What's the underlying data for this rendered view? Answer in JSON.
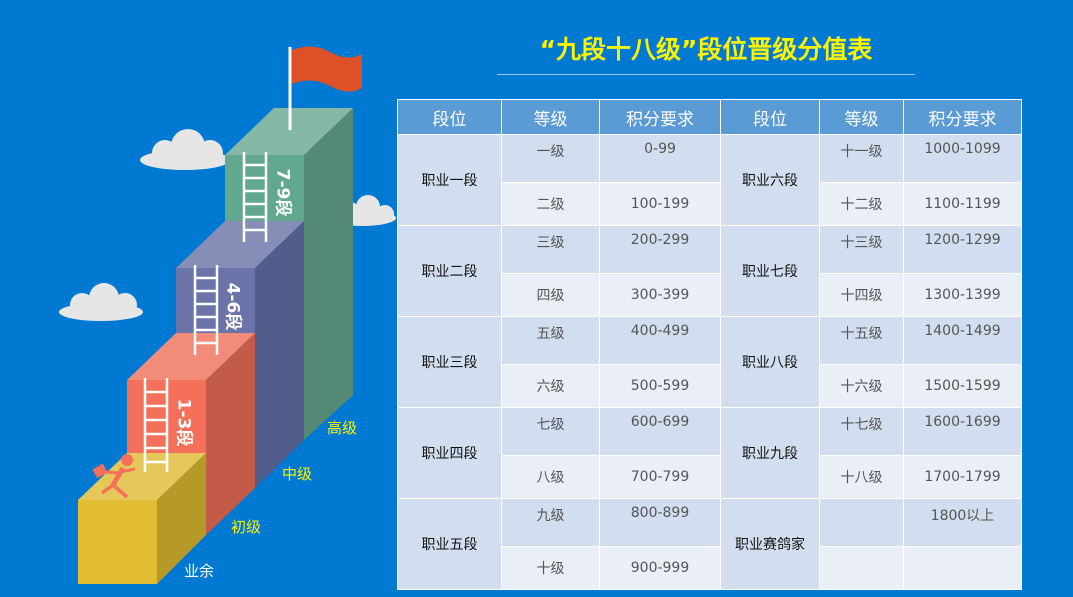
{
  "title": "“九段十八级”段位晋级分值表",
  "illustration": {
    "step_labels": [
      "1-3段",
      "4-6段",
      "7-9段"
    ],
    "tier_labels": [
      "业余",
      "初级",
      "中级",
      "高级"
    ],
    "colors": {
      "amateur": "#e2bd33",
      "junior": "#f4705a",
      "middle": "#6b74a8",
      "senior": "#62a88e",
      "flag": "#dd5128"
    }
  },
  "table": {
    "headers": [
      "段位",
      "等级",
      "积分要求",
      "段位",
      "等级",
      "积分要求"
    ],
    "left": [
      {
        "segment": "职业一段",
        "levels": [
          [
            "一级",
            "0-99"
          ],
          [
            "二级",
            "100-199"
          ]
        ]
      },
      {
        "segment": "职业二段",
        "levels": [
          [
            "三级",
            "200-299"
          ],
          [
            "四级",
            "300-399"
          ]
        ]
      },
      {
        "segment": "职业三段",
        "levels": [
          [
            "五级",
            "400-499"
          ],
          [
            "六级",
            "500-599"
          ]
        ]
      },
      {
        "segment": "职业四段",
        "levels": [
          [
            "七级",
            "600-699"
          ],
          [
            "八级",
            "700-799"
          ]
        ]
      },
      {
        "segment": "职业五段",
        "levels": [
          [
            "九级",
            "800-899"
          ],
          [
            "十级",
            "900-999"
          ]
        ]
      }
    ],
    "right": [
      {
        "segment": "职业六段",
        "levels": [
          [
            "十一级",
            "1000-1099"
          ],
          [
            "十二级",
            "1100-1199"
          ]
        ]
      },
      {
        "segment": "职业七段",
        "levels": [
          [
            "十三级",
            "1200-1299"
          ],
          [
            "十四级",
            "1300-1399"
          ]
        ]
      },
      {
        "segment": "职业八段",
        "levels": [
          [
            "十五级",
            "1400-1499"
          ],
          [
            "十六级",
            "1500-1599"
          ]
        ]
      },
      {
        "segment": "职业九段",
        "levels": [
          [
            "十七级",
            "1600-1699"
          ],
          [
            "十八级",
            "1700-1799"
          ]
        ]
      },
      {
        "segment": "职业赛鸽家",
        "levels": [
          [
            "",
            "1800以上"
          ],
          [
            "",
            ""
          ]
        ]
      }
    ]
  }
}
